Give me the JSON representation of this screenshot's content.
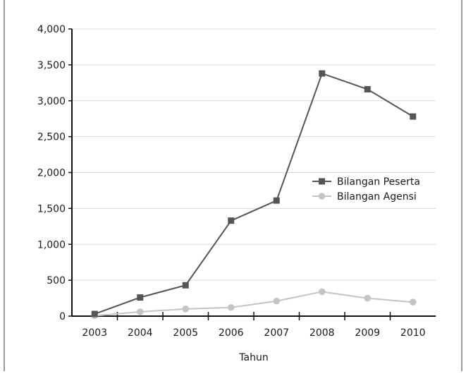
{
  "chart_data": {
    "type": "line",
    "categories": [
      "2003",
      "2004",
      "2005",
      "2006",
      "2007",
      "2008",
      "2009",
      "2010"
    ],
    "series": [
      {
        "name": "Bilangan Peserta",
        "values": [
          30,
          260,
          430,
          1330,
          1610,
          3380,
          3160,
          2780
        ],
        "color": "#555555",
        "marker": "square"
      },
      {
        "name": "Bilangan Agensi",
        "values": [
          5,
          60,
          100,
          120,
          210,
          340,
          250,
          195
        ],
        "color": "#c4c4c4",
        "marker": "circle"
      }
    ],
    "xlabel": "Tahun",
    "ylabel": "",
    "ylim": [
      0,
      4000
    ],
    "yticks": [
      "0",
      "500",
      "1,000",
      "1,500",
      "2,000",
      "2,500",
      "3,000",
      "3,500",
      "4,000"
    ],
    "grid": true,
    "legend_position": "right"
  }
}
